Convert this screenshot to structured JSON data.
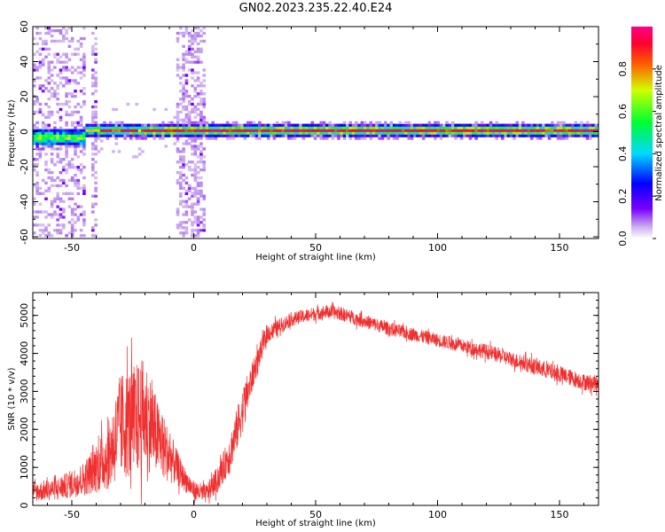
{
  "title": "GN02.2023.235.22.40.E24",
  "chart_data": [
    {
      "type": "heatmap",
      "xlabel": "Height of straight line (km)",
      "ylabel": "Frequency (Hz)",
      "xlim": [
        -66,
        166
      ],
      "ylim": [
        -61,
        60
      ],
      "xticks": [
        -50,
        0,
        50,
        100,
        150
      ],
      "yticks": [
        -60,
        -40,
        -20,
        0,
        20,
        40,
        60
      ],
      "colorbar": {
        "label": "Normalized spectral amplitude",
        "range": [
          0,
          1
        ],
        "ticks": [
          "0.0",
          "0.2",
          "0.4",
          "0.6",
          "0.8"
        ],
        "colormap": "rainbow (white-violet-blue-cyan-green-yellow-red-pink)"
      },
      "description_values": {
        "main_ridge_frequency_hz": 0,
        "ridge_halfwidth_hz": 3,
        "noise_bands_km": [
          [
            -66,
            -45
          ],
          [
            -42,
            -40
          ],
          [
            -8,
            4
          ]
        ]
      }
    },
    {
      "type": "line",
      "xlabel": "Height of straight line (km)",
      "ylabel": "SNR (10 * v/v)",
      "xlim": [
        -66,
        166
      ],
      "ylim": [
        0,
        5600
      ],
      "xticks": [
        -50,
        0,
        50,
        100,
        150
      ],
      "yticks": [
        0,
        1000,
        2000,
        3000,
        4000,
        5000
      ],
      "series": [
        {
          "color": "#f03030",
          "envelope": {
            "x": [
              -66,
              -55,
              -45,
              -35,
              -30,
              -25,
              -20,
              -15,
              -10,
              -5,
              0,
              5,
              10,
              15,
              20,
              25,
              30,
              40,
              50,
              55,
              60,
              70,
              80,
              90,
              100,
              110,
              120,
              130,
              140,
              150,
              160,
              166
            ],
            "y": [
              350,
              450,
              700,
              1300,
              2100,
              2200,
              2400,
              1800,
              1300,
              800,
              400,
              300,
              700,
              1400,
              2500,
              3600,
              4500,
              4900,
              5050,
              5100,
              5050,
              4850,
              4650,
              4500,
              4350,
              4200,
              4050,
              3850,
              3650,
              3450,
              3250,
              3200
            ],
            "noise_amplitude": [
              250,
              300,
              450,
              900,
              1400,
              1500,
              1500,
              1000,
              700,
              350,
              250,
              250,
              350,
              500,
              600,
              350,
              250,
              180,
              180,
              180,
              180,
              180,
              180,
              180,
              180,
              180,
              200,
              200,
              220,
              220,
              220,
              220
            ]
          }
        }
      ]
    }
  ]
}
